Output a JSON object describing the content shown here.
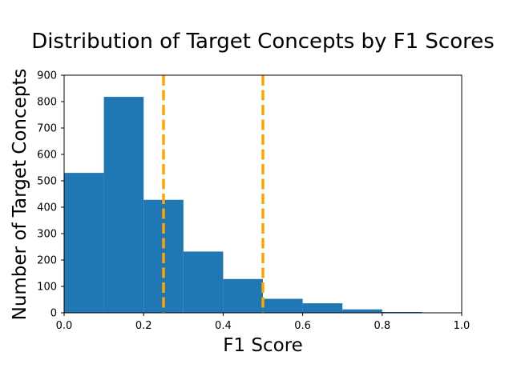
{
  "chart_data": {
    "type": "bar",
    "title": "Distribution of Target Concepts by F1 Scores",
    "xlabel": "F1 Score",
    "ylabel": "Number of Target Concepts",
    "xlim": [
      0.0,
      1.0
    ],
    "ylim": [
      0,
      900
    ],
    "x_ticks": [
      "0.0",
      "0.2",
      "0.4",
      "0.6",
      "0.8",
      "1.0"
    ],
    "y_ticks": [
      "0",
      "100",
      "200",
      "300",
      "400",
      "500",
      "600",
      "700",
      "800",
      "900"
    ],
    "bins": [
      {
        "start": 0.0,
        "end": 0.1,
        "value": 530
      },
      {
        "start": 0.1,
        "end": 0.2,
        "value": 818
      },
      {
        "start": 0.2,
        "end": 0.3,
        "value": 428
      },
      {
        "start": 0.3,
        "end": 0.4,
        "value": 232
      },
      {
        "start": 0.4,
        "end": 0.5,
        "value": 128
      },
      {
        "start": 0.5,
        "end": 0.6,
        "value": 53
      },
      {
        "start": 0.6,
        "end": 0.7,
        "value": 36
      },
      {
        "start": 0.7,
        "end": 0.8,
        "value": 13
      },
      {
        "start": 0.8,
        "end": 0.9,
        "value": 3
      },
      {
        "start": 0.9,
        "end": 1.0,
        "value": 0
      }
    ],
    "thresholds": [
      0.25,
      0.5
    ],
    "bar_color": "#1f77b4",
    "threshold_color": "#ffa500",
    "grid": false,
    "legend": "none"
  }
}
